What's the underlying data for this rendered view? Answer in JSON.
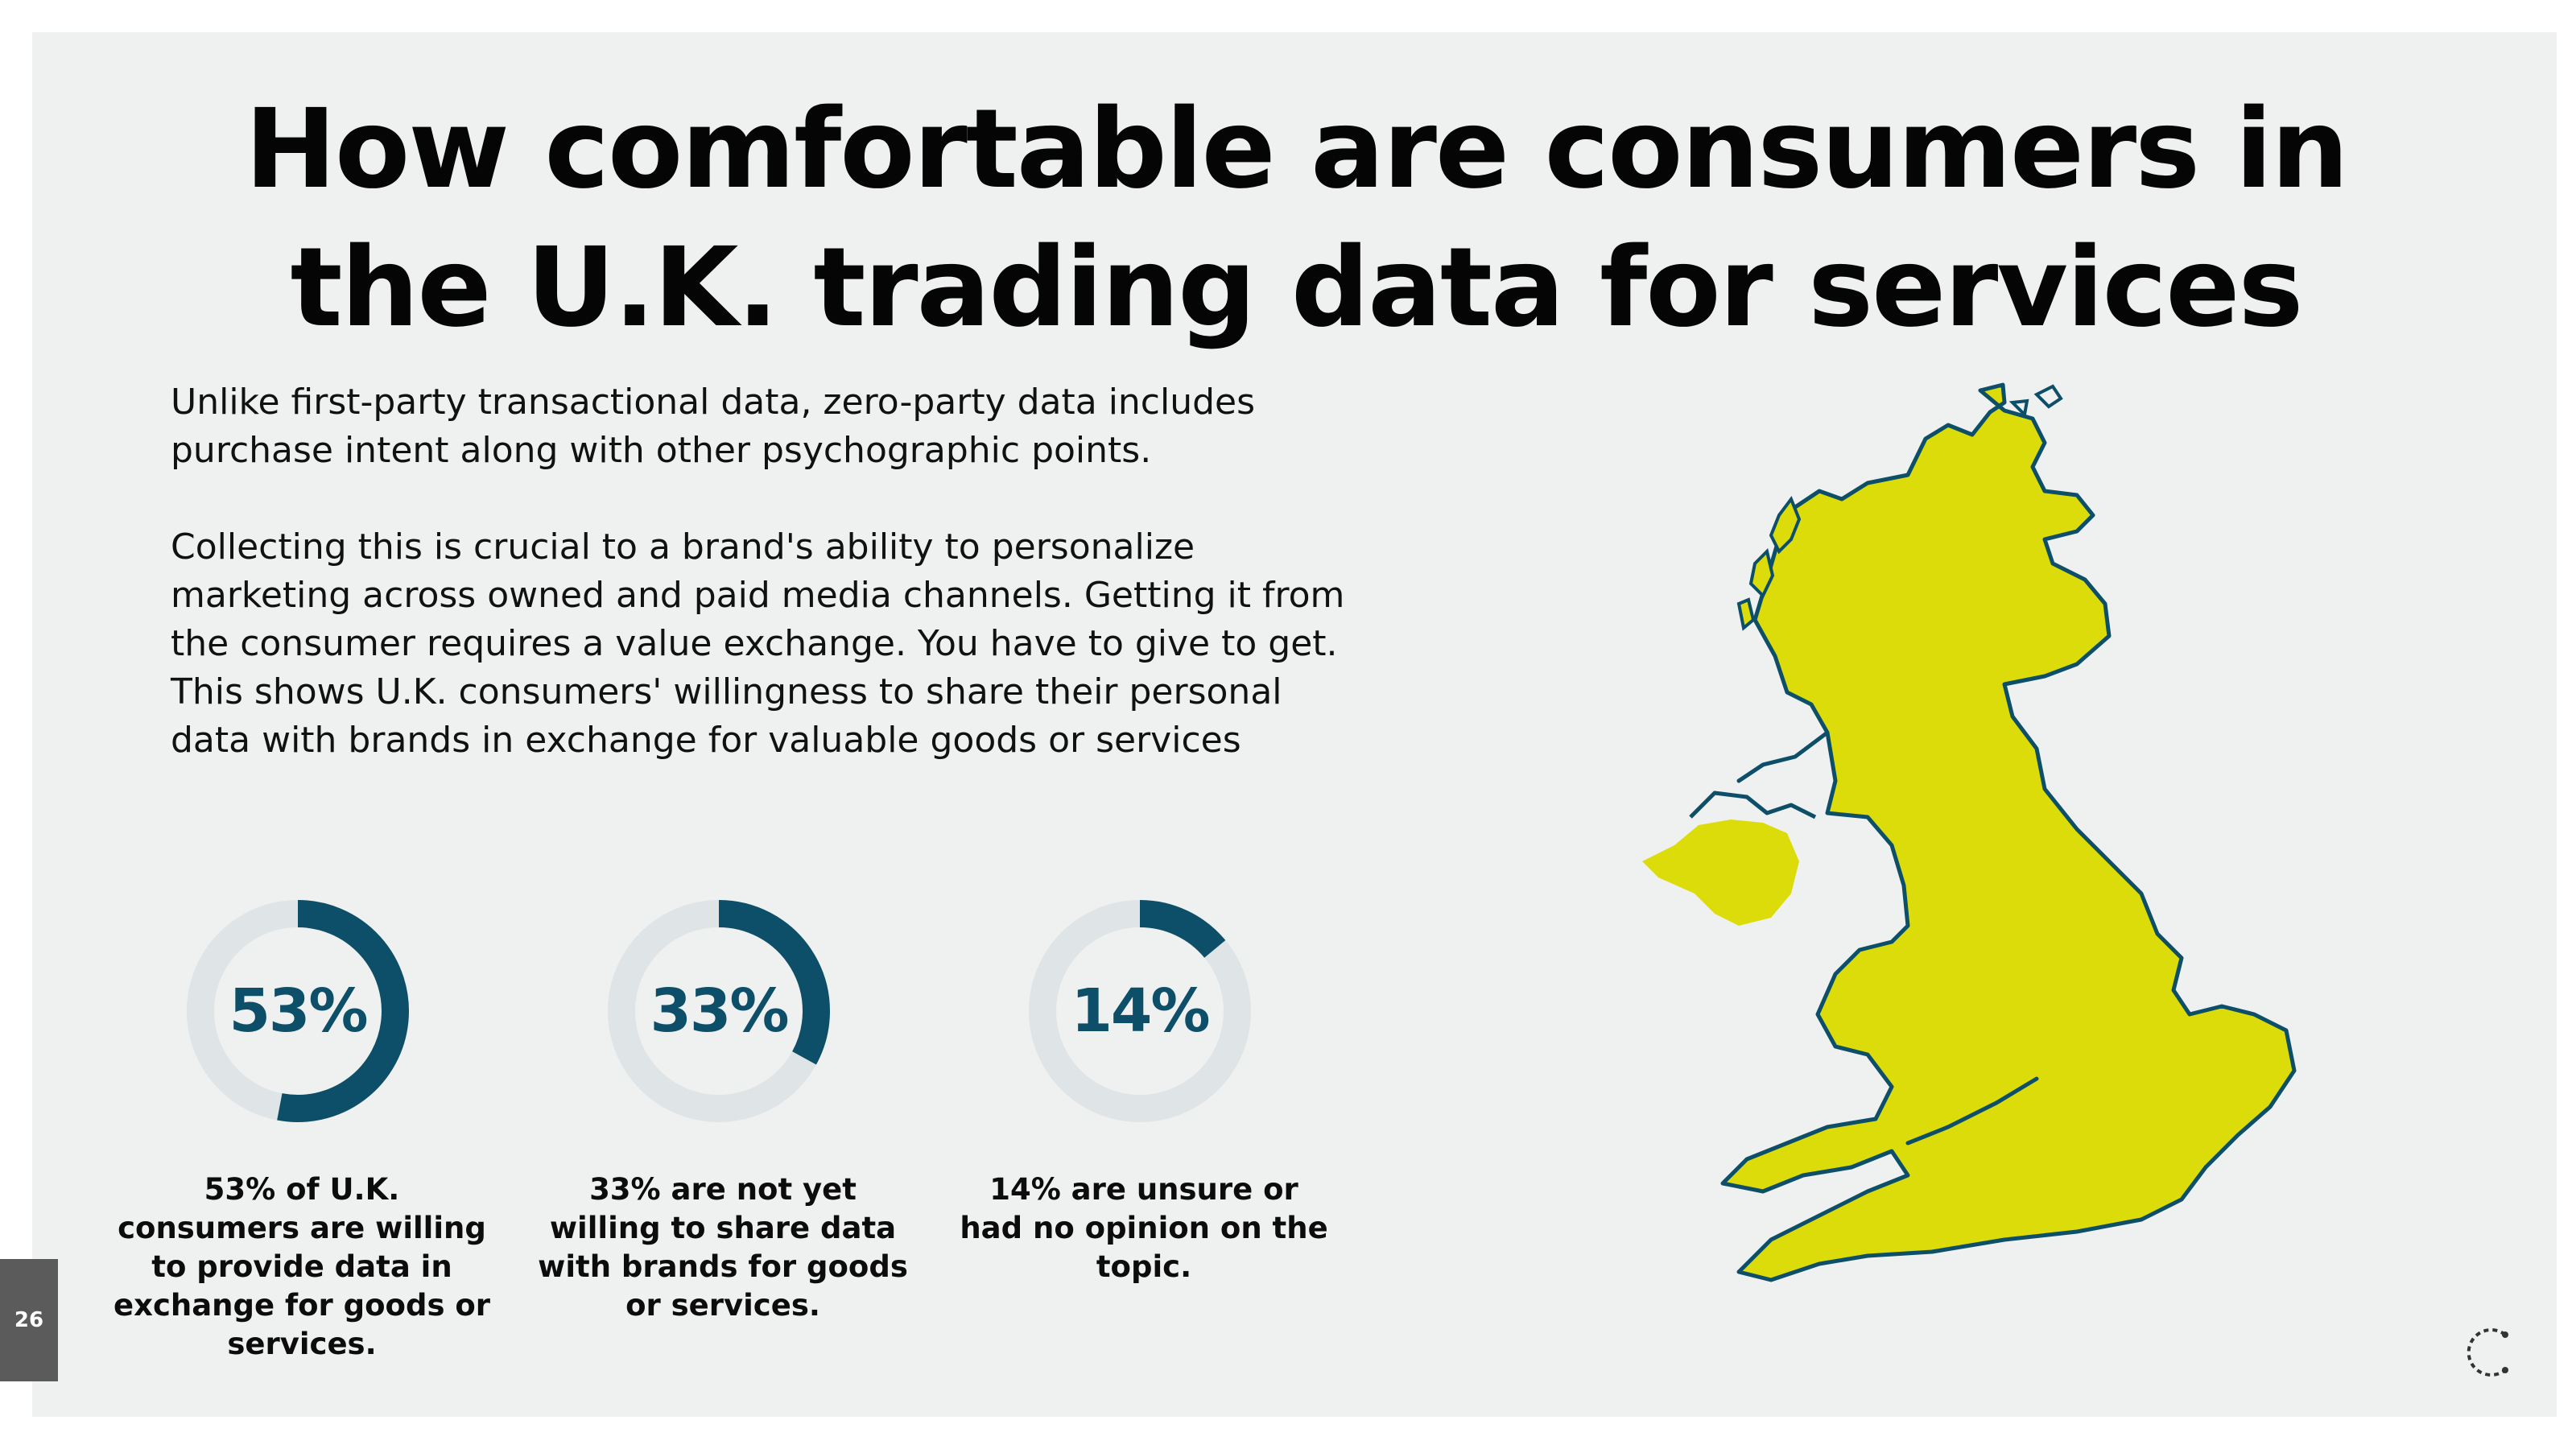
{
  "title": "How comfortable are consumers in the U.K. trading data for services",
  "intro": {
    "paragraph_1": "Unlike first-party transactional data, zero-party data includes purchase intent along with other psychographic points.",
    "paragraph_2": "Collecting this is crucial to a brand's ability to personalize marketing across owned and paid media channels. Getting it from the consumer requires a value exchange. You have to give to get. This shows U.K. consumers' willingness to share their personal data with brands in exchange for valuable goods or services"
  },
  "chart_data": [
    {
      "type": "pie",
      "variant": "donut",
      "value": 53,
      "label": "53%",
      "caption": "53% of U.K. consumers are willing to provide data in exchange for goods or services."
    },
    {
      "type": "pie",
      "variant": "donut",
      "value": 33,
      "label": "33%",
      "caption": "33% are not yet willing to share data with brands for goods or services."
    },
    {
      "type": "pie",
      "variant": "donut",
      "value": 14,
      "label": "14%",
      "caption": "14% are unsure or had no opinion on the topic."
    }
  ],
  "colors": {
    "ring_fill": "#0d4f68",
    "ring_track": "#dfe4e6",
    "map_land": "#dcdc0a",
    "map_outline": "#0d4f68",
    "page_tab": "#5b5b5b"
  },
  "page_number": "26",
  "icons": {
    "map": "uk-map-icon",
    "logo": "brand-logo-icon"
  }
}
